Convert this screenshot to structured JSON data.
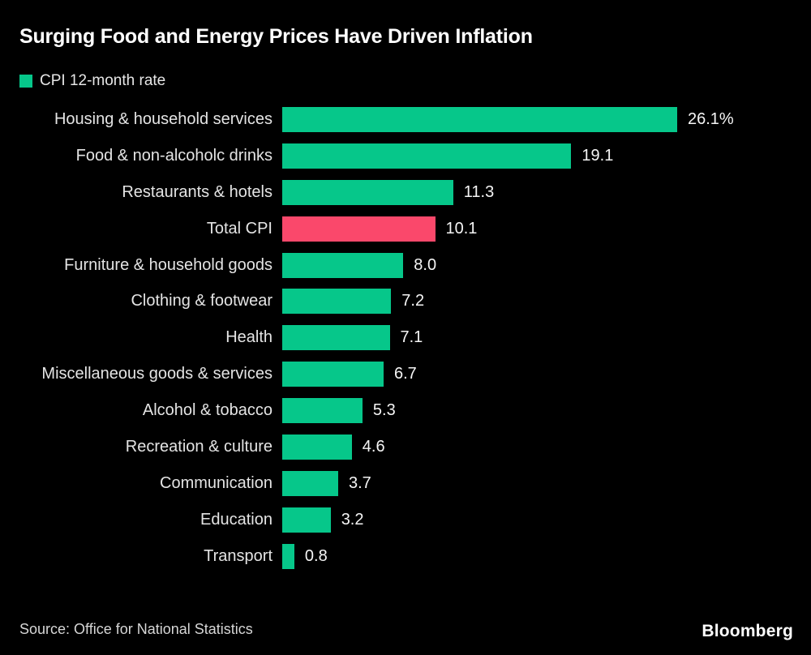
{
  "header": {
    "title": "Surging Food and Energy Prices Have Driven Inflation"
  },
  "legend": {
    "label": "CPI 12-month rate",
    "swatch_color": "#06C78A"
  },
  "chart_data": {
    "type": "bar",
    "orientation": "horizontal",
    "title": "Surging Food and Energy Prices Have Driven Inflation",
    "series_name": "CPI 12-month rate",
    "categories": [
      "Housing & household services",
      "Food & non-alcoholc drinks",
      "Restaurants & hotels",
      "Total CPI",
      "Furniture & household goods",
      "Clothing & footwear",
      "Health",
      "Miscellaneous goods & services",
      "Alcohol & tobacco",
      "Recreation & culture",
      "Communication",
      "Education",
      "Transport"
    ],
    "values": [
      26.1,
      19.1,
      11.3,
      10.1,
      8.0,
      7.2,
      7.1,
      6.7,
      5.3,
      4.6,
      3.7,
      3.2,
      0.8
    ],
    "value_labels": [
      "26.1%",
      "19.1",
      "11.3",
      "10.1",
      "8.0",
      "7.2",
      "7.1",
      "6.7",
      "5.3",
      "4.6",
      "3.7",
      "3.2",
      "0.8"
    ],
    "xlim": [
      0,
      26.1
    ],
    "grid": false,
    "legend_position": "top-left",
    "bar_color": "#06C78A",
    "highlight_index": 3,
    "highlight_category": "Total CPI",
    "highlight_color": "#FA486B",
    "background_color": "#000000"
  },
  "footer": {
    "source": "Source: Office for National Statistics",
    "brand": "Bloomberg"
  }
}
